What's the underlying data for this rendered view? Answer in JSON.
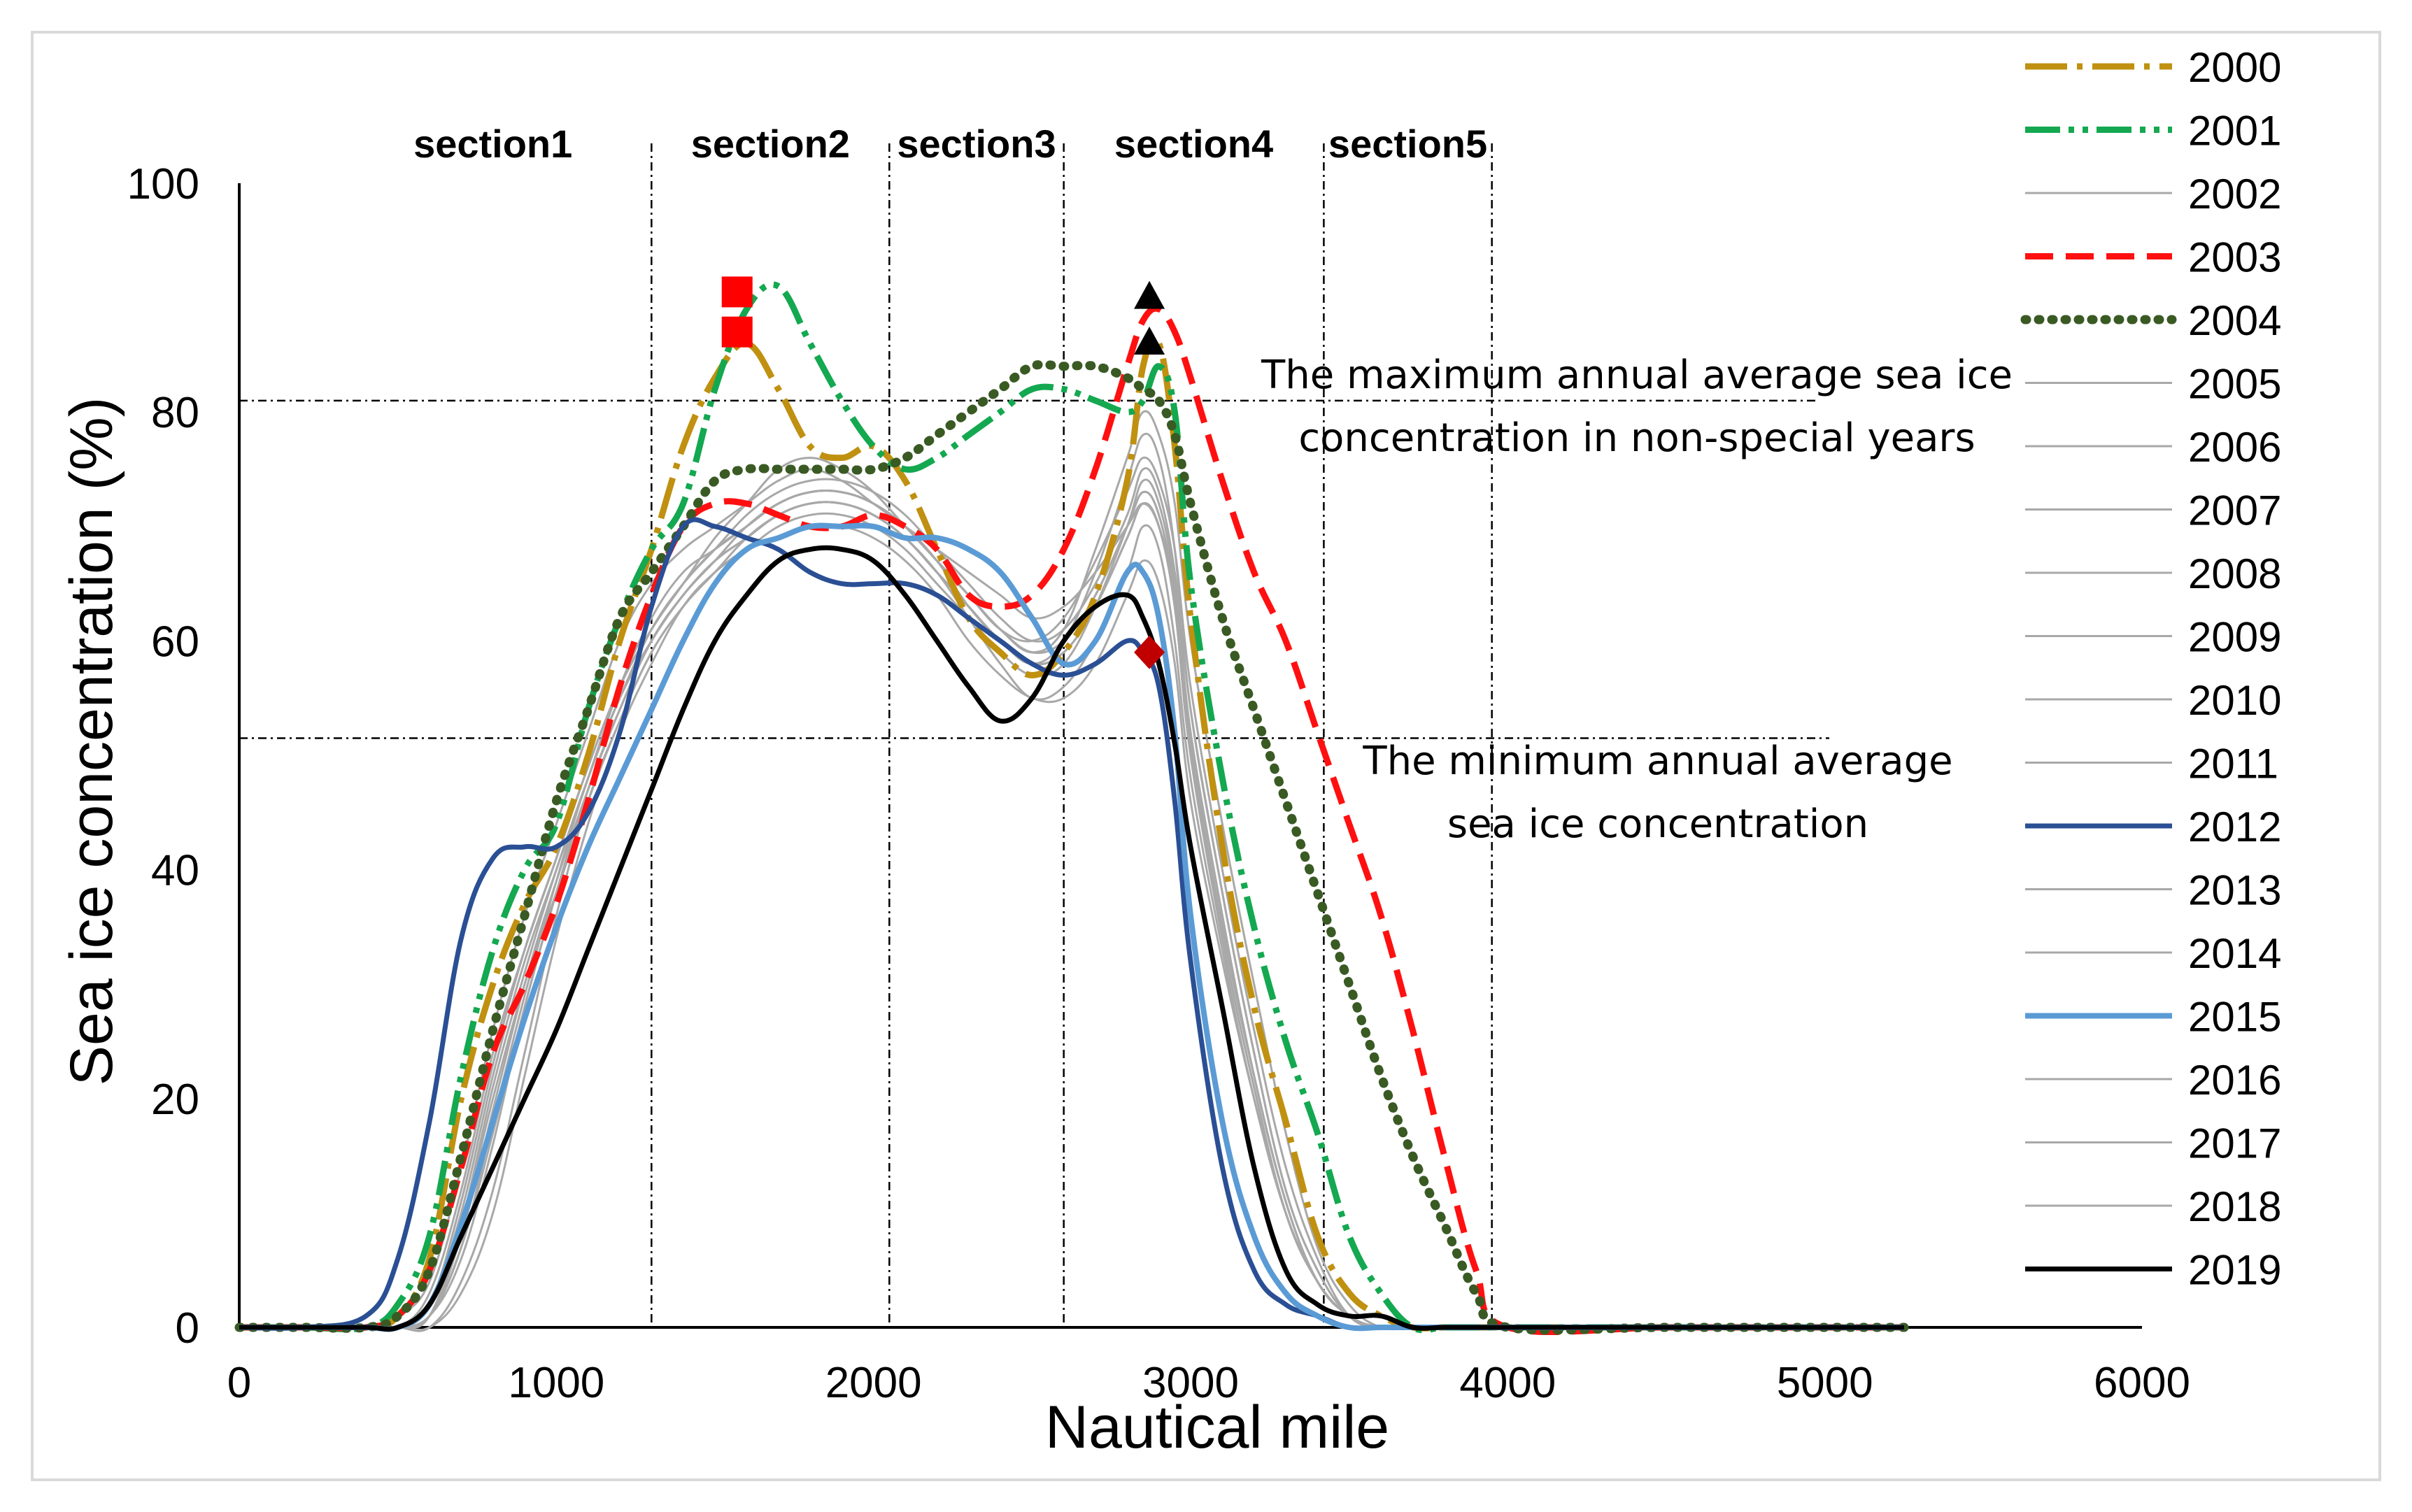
{
  "chart_data": {
    "type": "line",
    "title": "",
    "xlabel": "Nautical mile",
    "ylabel": "Sea ice concentration (%)",
    "xlim": [
      0,
      6000
    ],
    "ylim": [
      0,
      100
    ],
    "xticks": [
      0,
      1000,
      2000,
      3000,
      4000,
      5000,
      6000
    ],
    "yticks": [
      0,
      20,
      40,
      60,
      80,
      100
    ],
    "sections": [
      {
        "label": "section1",
        "boundary": 1300
      },
      {
        "label": "section2",
        "boundary": 2050
      },
      {
        "label": "section3",
        "boundary": 2600
      },
      {
        "label": "section4",
        "boundary": 3420
      },
      {
        "label": "section5",
        "boundary": 3950
      }
    ],
    "reference_lines": [
      {
        "label": "The maximum annual average sea ice concentration in non-special years",
        "label_line1": "The maximum annual average sea ice",
        "label_line2": "concentration in non-special years",
        "value": 81
      },
      {
        "label": "The minimum annual average sea ice concentration",
        "label_line1": "The minimum annual average",
        "label_line2": "sea ice concentration",
        "value": 51.5
      }
    ],
    "x": [
      0,
      200,
      400,
      500,
      600,
      700,
      800,
      900,
      1000,
      1100,
      1200,
      1300,
      1400,
      1500,
      1600,
      1700,
      1800,
      1900,
      2000,
      2100,
      2200,
      2300,
      2400,
      2500,
      2600,
      2700,
      2800,
      2850,
      2900,
      2950,
      3000,
      3100,
      3200,
      3300,
      3400,
      3500,
      3600,
      3700,
      3800,
      3900,
      4000,
      4500,
      5000,
      5250
    ],
    "series": [
      {
        "name": "2000",
        "color": "#c09010",
        "dash": "60,14,8,14",
        "width": 9,
        "values": [
          0,
          0,
          0,
          1,
          6,
          20,
          30,
          37,
          42,
          50,
          60,
          68,
          77,
          83,
          86,
          82,
          77,
          76,
          77,
          74,
          68,
          62,
          59,
          57,
          59,
          64,
          74,
          84,
          86,
          77,
          62,
          42,
          28,
          18,
          8,
          3,
          1,
          0,
          0,
          0,
          0,
          0,
          0,
          0
        ]
      },
      {
        "name": "2001",
        "color": "#14a850",
        "dash": "50,12,8,12,8,12",
        "width": 9,
        "values": [
          0,
          0,
          0,
          2,
          8,
          22,
          33,
          40,
          44,
          54,
          62,
          68,
          72,
          82,
          89,
          91,
          86,
          81,
          77,
          75,
          76,
          78,
          80,
          82,
          82,
          81,
          80,
          81,
          84,
          80,
          65,
          48,
          35,
          25,
          17,
          8,
          3,
          0,
          0,
          0,
          0,
          0,
          0,
          0
        ]
      },
      {
        "name": "2002",
        "color": "#a8a8a8",
        "dash": "",
        "width": 3,
        "values": [
          0,
          0,
          0,
          1,
          4,
          14,
          26,
          36,
          44,
          52,
          60,
          65,
          68,
          70,
          72,
          74,
          75,
          74,
          72,
          70,
          68,
          66,
          64,
          62,
          63,
          66,
          70,
          72,
          70,
          64,
          52,
          36,
          22,
          11,
          4,
          1,
          0,
          0,
          0,
          0,
          0,
          0,
          0,
          0
        ]
      },
      {
        "name": "2003",
        "color": "#ff1010",
        "dash": "40,18",
        "width": 9,
        "values": [
          0,
          0,
          0,
          1,
          5,
          14,
          24,
          30,
          37,
          46,
          56,
          64,
          70,
          72,
          72,
          71,
          70,
          70,
          71,
          70,
          68,
          64,
          63,
          64,
          68,
          75,
          84,
          88,
          89,
          87,
          83,
          74,
          66,
          60,
          52,
          44,
          36,
          26,
          15,
          5,
          0,
          0,
          0,
          0
        ]
      },
      {
        "name": "2004",
        "color": "#3a5a24",
        "dash": "2,17",
        "width": 13,
        "values": [
          0,
          0,
          0,
          1,
          5,
          15,
          26,
          36,
          46,
          54,
          62,
          66,
          70,
          74,
          75,
          75,
          75,
          75,
          75,
          76,
          78,
          80,
          82,
          84,
          84,
          84,
          83,
          82,
          81,
          78,
          72,
          62,
          54,
          46,
          38,
          30,
          22,
          15,
          9,
          3,
          0,
          0,
          0,
          0
        ]
      },
      {
        "name": "2005",
        "color": "#a8a8a8",
        "dash": "",
        "width": 3,
        "values": [
          0,
          0,
          0,
          0,
          2,
          10,
          22,
          32,
          40,
          48,
          56,
          62,
          66,
          68,
          70,
          72,
          73,
          73,
          72,
          70,
          67,
          63,
          60,
          58,
          60,
          66,
          74,
          78,
          76,
          68,
          54,
          38,
          24,
          12,
          5,
          1,
          0,
          0,
          0,
          0,
          0,
          0,
          0,
          0
        ]
      },
      {
        "name": "2006",
        "color": "#a8a8a8",
        "dash": "",
        "width": 3,
        "values": [
          0,
          0,
          0,
          0,
          1,
          6,
          16,
          28,
          38,
          47,
          54,
          60,
          64,
          67,
          69,
          71,
          72,
          72,
          71,
          69,
          66,
          62,
          58,
          55,
          56,
          60,
          66,
          70,
          68,
          60,
          48,
          33,
          20,
          10,
          4,
          1,
          0,
          0,
          0,
          0,
          0,
          0,
          0,
          0
        ]
      },
      {
        "name": "2007",
        "color": "#a8a8a8",
        "dash": "",
        "width": 3,
        "values": [
          0,
          0,
          0,
          0,
          3,
          12,
          24,
          33,
          41,
          49,
          56,
          61,
          65,
          69,
          72,
          75,
          76,
          75,
          73,
          70,
          67,
          64,
          61,
          59,
          61,
          68,
          76,
          80,
          78,
          72,
          60,
          44,
          30,
          17,
          7,
          2,
          0,
          0,
          0,
          0,
          0,
          0,
          0,
          0
        ]
      },
      {
        "name": "2008",
        "color": "#a8a8a8",
        "dash": "",
        "width": 3,
        "values": [
          0,
          0,
          0,
          0,
          0,
          3,
          10,
          22,
          34,
          44,
          52,
          58,
          63,
          66,
          68,
          69,
          70,
          70,
          69,
          67,
          64,
          60,
          57,
          55,
          55,
          58,
          64,
          67,
          65,
          58,
          46,
          32,
          20,
          10,
          4,
          1,
          0,
          0,
          0,
          0,
          0,
          0,
          0,
          0
        ]
      },
      {
        "name": "2009",
        "color": "#a8a8a8",
        "dash": "",
        "width": 3,
        "values": [
          0,
          0,
          0,
          0,
          2,
          9,
          20,
          30,
          38,
          46,
          53,
          59,
          63,
          66,
          68,
          70,
          71,
          71,
          70,
          68,
          65,
          62,
          59,
          57,
          58,
          63,
          70,
          74,
          72,
          65,
          52,
          36,
          22,
          11,
          4,
          1,
          0,
          0,
          0,
          0,
          0,
          0,
          0,
          0
        ]
      },
      {
        "name": "2010",
        "color": "#a8a8a8",
        "dash": "",
        "width": 3,
        "values": [
          0,
          0,
          0,
          0,
          1,
          7,
          18,
          29,
          39,
          48,
          55,
          61,
          65,
          68,
          70,
          72,
          73,
          73,
          72,
          70,
          67,
          64,
          61,
          60,
          62,
          67,
          73,
          76,
          74,
          68,
          56,
          40,
          26,
          14,
          6,
          1,
          0,
          0,
          0,
          0,
          0,
          0,
          0,
          0
        ]
      },
      {
        "name": "2011",
        "color": "#a8a8a8",
        "dash": "",
        "width": 3,
        "values": [
          0,
          0,
          0,
          0,
          2,
          11,
          23,
          33,
          41,
          49,
          56,
          61,
          65,
          68,
          71,
          73,
          74,
          74,
          73,
          71,
          68,
          65,
          62,
          60,
          61,
          65,
          71,
          75,
          73,
          66,
          54,
          38,
          24,
          12,
          5,
          1,
          0,
          0,
          0,
          0,
          0,
          0,
          0,
          0
        ]
      },
      {
        "name": "2012",
        "color": "#2a4f94",
        "dash": "",
        "width": 7,
        "values": [
          0,
          0,
          1,
          6,
          18,
          34,
          41,
          42,
          42,
          45,
          52,
          63,
          70,
          70,
          69,
          68,
          66,
          65,
          65,
          65,
          64,
          62,
          60,
          58,
          57,
          58,
          60,
          59,
          56,
          46,
          32,
          14,
          5,
          2,
          1,
          0,
          0,
          0,
          0,
          0,
          0,
          0,
          0,
          0
        ]
      },
      {
        "name": "2013",
        "color": "#a8a8a8",
        "dash": "",
        "width": 3,
        "values": [
          0,
          0,
          0,
          0,
          0,
          4,
          12,
          24,
          36,
          46,
          53,
          59,
          63,
          66,
          69,
          71,
          72,
          72,
          71,
          69,
          66,
          63,
          60,
          58,
          59,
          63,
          69,
          72,
          70,
          63,
          50,
          34,
          21,
          10,
          4,
          1,
          0,
          0,
          0,
          0,
          0,
          0,
          0,
          0
        ]
      },
      {
        "name": "2014",
        "color": "#a8a8a8",
        "dash": "",
        "width": 3,
        "values": [
          0,
          0,
          0,
          0,
          1,
          8,
          19,
          30,
          39,
          47,
          54,
          60,
          64,
          67,
          70,
          72,
          73,
          73,
          72,
          70,
          67,
          64,
          61,
          59,
          60,
          64,
          70,
          73,
          71,
          64,
          51,
          35,
          22,
          11,
          4,
          1,
          0,
          0,
          0,
          0,
          0,
          0,
          0,
          0
        ]
      },
      {
        "name": "2015",
        "color": "#5b9bd5",
        "dash": "",
        "width": 8,
        "values": [
          0,
          0,
          0,
          0,
          2,
          9,
          18,
          27,
          35,
          42,
          48,
          54,
          60,
          65,
          68,
          69,
          70,
          70,
          70,
          69,
          69,
          68,
          66,
          62,
          58,
          60,
          66,
          66,
          62,
          52,
          36,
          18,
          8,
          3,
          1,
          0,
          0,
          0,
          0,
          0,
          0,
          0,
          0,
          0
        ]
      },
      {
        "name": "2016",
        "color": "#a8a8a8",
        "dash": "",
        "width": 3,
        "values": [
          0,
          0,
          0,
          0,
          1,
          9,
          21,
          31,
          40,
          48,
          55,
          60,
          64,
          67,
          69,
          71,
          72,
          72,
          71,
          69,
          66,
          63,
          60,
          58,
          59,
          63,
          69,
          72,
          70,
          63,
          50,
          34,
          21,
          10,
          4,
          1,
          0,
          0,
          0,
          0,
          0,
          0,
          0,
          0
        ]
      },
      {
        "name": "2017",
        "color": "#a8a8a8",
        "dash": "",
        "width": 3,
        "values": [
          0,
          0,
          0,
          0,
          2,
          11,
          23,
          33,
          41,
          49,
          56,
          61,
          65,
          68,
          70,
          72,
          73,
          73,
          72,
          70,
          67,
          64,
          61,
          59,
          60,
          64,
          70,
          73,
          71,
          64,
          51,
          35,
          22,
          11,
          4,
          1,
          0,
          0,
          0,
          0,
          0,
          0,
          0,
          0
        ]
      },
      {
        "name": "2018",
        "color": "#a8a8a8",
        "dash": "",
        "width": 3,
        "values": [
          0,
          0,
          0,
          0,
          1,
          7,
          17,
          28,
          38,
          47,
          54,
          60,
          64,
          67,
          69,
          71,
          72,
          72,
          71,
          69,
          66,
          63,
          60,
          58,
          59,
          63,
          69,
          72,
          70,
          63,
          50,
          34,
          21,
          10,
          4,
          1,
          0,
          0,
          0,
          0,
          0,
          0,
          0,
          0
        ]
      },
      {
        "name": "2019",
        "color": "#000000",
        "dash": "",
        "width": 7,
        "values": [
          0,
          0,
          0,
          0,
          2,
          8,
          14,
          20,
          26,
          33,
          40,
          47,
          54,
          60,
          64,
          67,
          68,
          68,
          67,
          64,
          60,
          56,
          53,
          55,
          60,
          63,
          64,
          62,
          58,
          51,
          42,
          28,
          14,
          5,
          2,
          1,
          1,
          0,
          0,
          0,
          0,
          0,
          0,
          0
        ]
      }
    ],
    "markers": [
      {
        "shape": "square",
        "color": "#ff0000",
        "x": 1570,
        "y": 90.5
      },
      {
        "shape": "square",
        "color": "#ff0000",
        "x": 1570,
        "y": 87
      },
      {
        "shape": "triangle",
        "color": "#000000",
        "x": 2870,
        "y": 90
      },
      {
        "shape": "triangle",
        "color": "#000000",
        "x": 2870,
        "y": 86
      },
      {
        "shape": "diamond",
        "color": "#c00000",
        "x": 2870,
        "y": 59
      }
    ],
    "legend_position": "right"
  }
}
